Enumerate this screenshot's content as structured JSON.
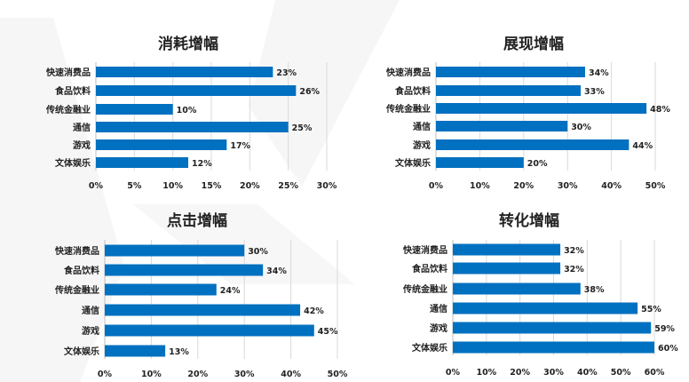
{
  "colors": {
    "bar": "#0070C0",
    "grid": "#D9D9D9",
    "decoration": "#F2F2F2"
  },
  "chart_data": [
    {
      "type": "bar",
      "orientation": "horizontal",
      "title": "消耗增幅",
      "categories": [
        "快速消费品",
        "食品饮料",
        "传统金融业",
        "通信",
        "游戏",
        "文体娱乐"
      ],
      "values": [
        23,
        26,
        10,
        25,
        17,
        12
      ],
      "data_labels": [
        "23%",
        "26%",
        "10%",
        "25%",
        "17%",
        "12%"
      ],
      "xlim": [
        0,
        30
      ],
      "xticks": [
        "0%",
        "5%",
        "10%",
        "15%",
        "20%",
        "25%",
        "30%"
      ],
      "grid": true
    },
    {
      "type": "bar",
      "orientation": "horizontal",
      "title": "展现增幅",
      "categories": [
        "快速消费品",
        "食品饮料",
        "传统金融业",
        "通信",
        "游戏",
        "文体娱乐"
      ],
      "values": [
        34,
        33,
        48,
        30,
        44,
        20
      ],
      "data_labels": [
        "34%",
        "33%",
        "48%",
        "30%",
        "44%",
        "20%"
      ],
      "xlim": [
        0,
        50
      ],
      "xticks": [
        "0%",
        "10%",
        "20%",
        "30%",
        "40%",
        "50%"
      ],
      "grid": true
    },
    {
      "type": "bar",
      "orientation": "horizontal",
      "title": "点击增幅",
      "categories": [
        "快速消费品",
        "食品饮料",
        "传统金融业",
        "通信",
        "游戏",
        "文体娱乐"
      ],
      "values": [
        30,
        34,
        24,
        42,
        45,
        13
      ],
      "data_labels": [
        "30%",
        "34%",
        "24%",
        "42%",
        "45%",
        "13%"
      ],
      "xlim": [
        0,
        50
      ],
      "xticks": [
        "0%",
        "10%",
        "20%",
        "30%",
        "40%",
        "50%"
      ],
      "grid": true
    },
    {
      "type": "bar",
      "orientation": "horizontal",
      "title": "转化增幅",
      "categories": [
        "快速消费品",
        "食品饮料",
        "传统金融业",
        "通信",
        "游戏",
        "文体娱乐"
      ],
      "values": [
        32,
        32,
        38,
        55,
        59,
        60
      ],
      "data_labels": [
        "32%",
        "32%",
        "38%",
        "55%",
        "59%",
        "60%"
      ],
      "xlim": [
        0,
        60
      ],
      "xticks": [
        "0%",
        "10%",
        "20%",
        "30%",
        "40%",
        "50%",
        "60%"
      ],
      "grid": true
    }
  ]
}
